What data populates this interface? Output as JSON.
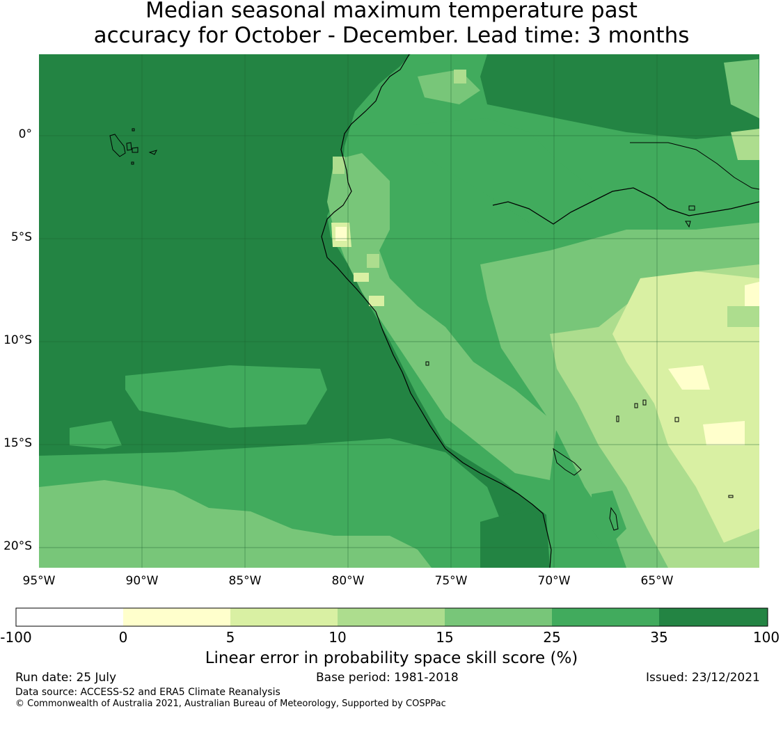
{
  "title_line1": "Median seasonal maximum temperature past",
  "title_line2": "accuracy for October - December. Lead time: 3 months",
  "map": {
    "lon_range": [
      -95,
      -60
    ],
    "lat_range": [
      -21,
      4
    ],
    "lon_labels": [
      "95°W",
      "90°W",
      "85°W",
      "80°W",
      "75°W",
      "70°W",
      "65°W"
    ],
    "lat_labels": [
      "0°",
      "5°S",
      "10°S",
      "15°S",
      "20°S"
    ],
    "gridlines": true
  },
  "colorbar": {
    "label": "Linear error in probability space skill score (%)",
    "ticks": [
      "-100",
      "0",
      "5",
      "10",
      "15",
      "25",
      "35",
      "100"
    ],
    "colors": [
      "#ffffff",
      "#ffffcc",
      "#d9f0a3",
      "#addd8e",
      "#78c679",
      "#41ab5d",
      "#238443"
    ]
  },
  "footer": {
    "run_date": "Run date: 25 July",
    "base_period": "Base period: 1981-2018",
    "issued": "Issued: 23/12/2021",
    "data_source": "Data source: ACCESS-S2 and ERA5 Climate Reanalysis",
    "copyright": "© Commonwealth of Australia 2021, Australian Bureau of Meteorology, Supported by COSPPac"
  }
}
